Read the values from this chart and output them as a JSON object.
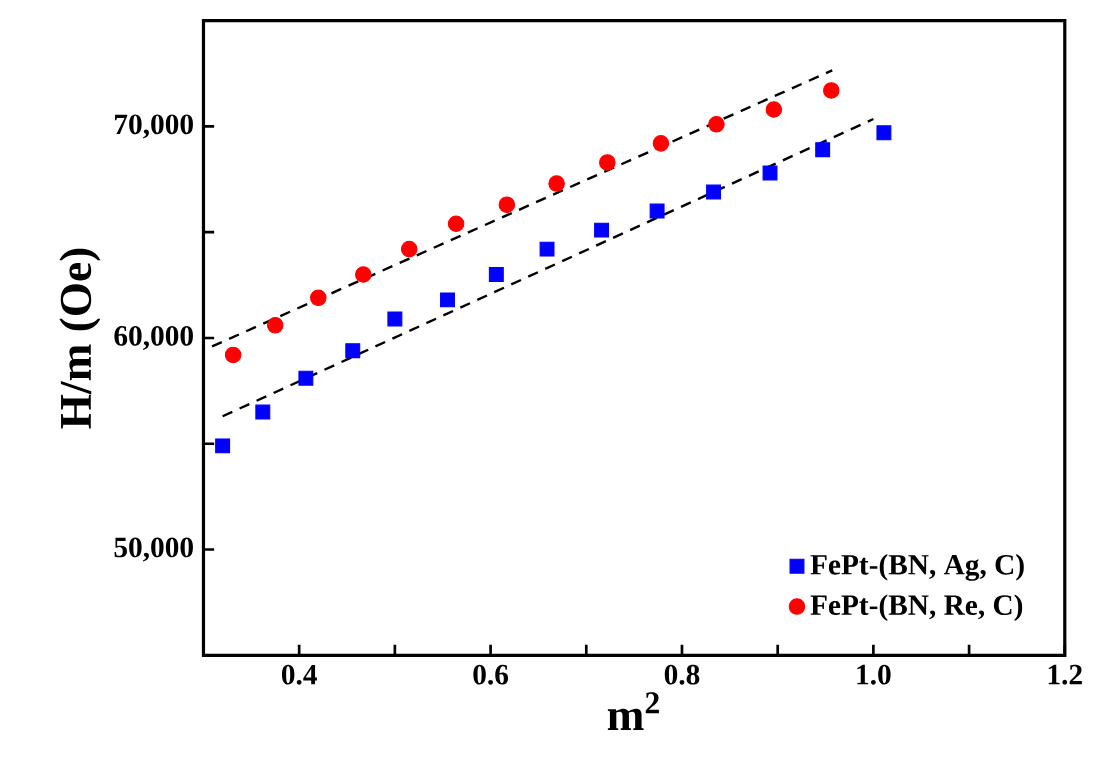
{
  "chart_data": {
    "type": "scatter",
    "xlabel": "m$^{2}$",
    "ylabel": "H/m (Oe)",
    "xlim": [
      0.3,
      1.2
    ],
    "ylim": [
      45000,
      75000
    ],
    "xticks": [
      {
        "value": 0.4,
        "label": "0.4"
      },
      {
        "value": 0.5,
        "label": null
      },
      {
        "value": 0.6,
        "label": "0.6"
      },
      {
        "value": 0.7,
        "label": null
      },
      {
        "value": 0.8,
        "label": "0.8"
      },
      {
        "value": 0.9,
        "label": null
      },
      {
        "value": 1.0,
        "label": "1.0"
      },
      {
        "value": 1.1,
        "label": null
      },
      {
        "value": 1.2,
        "label": "1.2"
      }
    ],
    "yticks": [
      {
        "value": 50000,
        "label": "50,000"
      },
      {
        "value": 55000,
        "label": null
      },
      {
        "value": 60000,
        "label": "60,000"
      },
      {
        "value": 65000,
        "label": null
      },
      {
        "value": 70000,
        "label": "70,000"
      }
    ],
    "legend": "bottom right",
    "series": [
      {
        "name": "FePt-(BN, Ag, C)",
        "color": "#0000ff",
        "marker": "square",
        "x": [
          0.32,
          0.362,
          0.407,
          0.456,
          0.5,
          0.555,
          0.606,
          0.659,
          0.716,
          0.774,
          0.833,
          0.892,
          0.947,
          1.011
        ],
        "values": [
          54900,
          56500,
          58100,
          59400,
          60900,
          61800,
          63000,
          64200,
          65100,
          66000,
          66900,
          67800,
          68900,
          69700
        ]
      },
      {
        "name": "FePt-(BN, Re, C)",
        "color": "#ff0000",
        "marker": "circle",
        "x": [
          0.331,
          0.375,
          0.42,
          0.467,
          0.515,
          0.564,
          0.617,
          0.669,
          0.722,
          0.778,
          0.836,
          0.896,
          0.956
        ],
        "values": [
          59200,
          60600,
          61900,
          63000,
          64200,
          65400,
          66300,
          67300,
          68300,
          69200,
          70100,
          70800,
          71700
        ]
      },
      {
        "type": "line",
        "color": "#000000",
        "line_style": "dashed",
        "marker": "none",
        "x": [
          0.32,
          1.0
        ],
        "values": [
          56300,
          70350
        ]
      },
      {
        "type": "line",
        "color": "#000000",
        "line_style": "dashed",
        "marker": "none",
        "x": [
          0.309,
          0.957
        ],
        "values": [
          59600,
          72650
        ]
      }
    ]
  }
}
